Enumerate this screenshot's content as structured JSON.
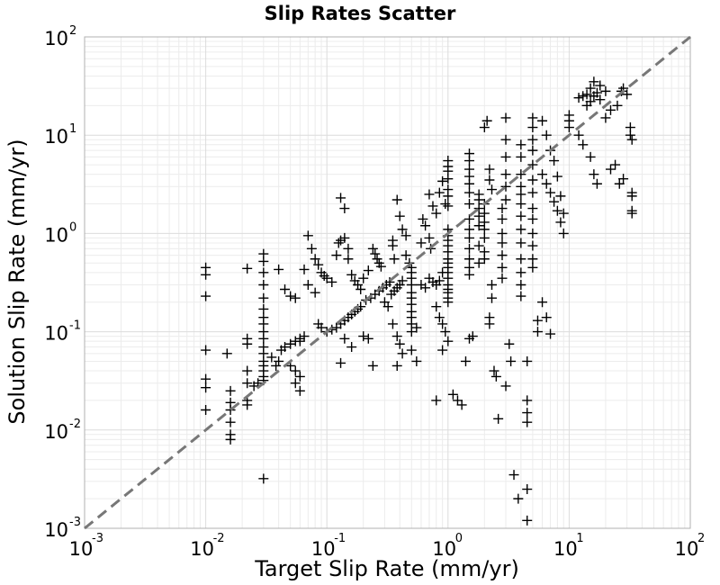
{
  "chart_data": {
    "type": "scatter",
    "title": "Slip Rates Scatter",
    "xlabel": "Target Slip Rate (mm/yr)",
    "ylabel": "Solution Slip Rate (mm/yr)",
    "xscale": "log",
    "yscale": "log",
    "xlim": [
      0.001,
      100
    ],
    "ylim": [
      0.001,
      100
    ],
    "grid": true,
    "marker": "+",
    "marker_color": "#000000",
    "reference_line": {
      "style": "dashed",
      "color": "#777777",
      "from": [
        0.001,
        0.001
      ],
      "to": [
        100,
        100
      ]
    },
    "x_ticks": [
      {
        "base": "10",
        "exp": "-3"
      },
      {
        "base": "10",
        "exp": "-2"
      },
      {
        "base": "10",
        "exp": "-1"
      },
      {
        "base": "10",
        "exp": "0"
      },
      {
        "base": "10",
        "exp": "1"
      },
      {
        "base": "10",
        "exp": "2"
      }
    ],
    "y_ticks": [
      {
        "base": "10",
        "exp": "-3"
      },
      {
        "base": "10",
        "exp": "-2"
      },
      {
        "base": "10",
        "exp": "-1"
      },
      {
        "base": "10",
        "exp": "0"
      },
      {
        "base": "10",
        "exp": "1"
      },
      {
        "base": "10",
        "exp": "2"
      }
    ],
    "points": [
      [
        0.01,
        0.45
      ],
      [
        0.01,
        0.38
      ],
      [
        0.01,
        0.23
      ],
      [
        0.01,
        0.065
      ],
      [
        0.01,
        0.033
      ],
      [
        0.01,
        0.027
      ],
      [
        0.01,
        0.016
      ],
      [
        0.015,
        0.06
      ],
      [
        0.016,
        0.025
      ],
      [
        0.016,
        0.019
      ],
      [
        0.016,
        0.016
      ],
      [
        0.016,
        0.012
      ],
      [
        0.016,
        0.009
      ],
      [
        0.016,
        0.008
      ],
      [
        0.022,
        0.44
      ],
      [
        0.022,
        0.085
      ],
      [
        0.022,
        0.075
      ],
      [
        0.022,
        0.04
      ],
      [
        0.022,
        0.03
      ],
      [
        0.022,
        0.02
      ],
      [
        0.022,
        0.018
      ],
      [
        0.03,
        0.62
      ],
      [
        0.03,
        0.52
      ],
      [
        0.03,
        0.4
      ],
      [
        0.03,
        0.3
      ],
      [
        0.03,
        0.22
      ],
      [
        0.03,
        0.17
      ],
      [
        0.03,
        0.14
      ],
      [
        0.03,
        0.12
      ],
      [
        0.03,
        0.1
      ],
      [
        0.03,
        0.085
      ],
      [
        0.03,
        0.07
      ],
      [
        0.03,
        0.06
      ],
      [
        0.03,
        0.05
      ],
      [
        0.03,
        0.045
      ],
      [
        0.03,
        0.04
      ],
      [
        0.03,
        0.035
      ],
      [
        0.03,
        0.032
      ],
      [
        0.03,
        0.0032
      ],
      [
        0.027,
        0.03
      ],
      [
        0.025,
        0.028
      ],
      [
        0.035,
        0.055
      ],
      [
        0.04,
        0.05
      ],
      [
        0.038,
        0.045
      ],
      [
        0.042,
        0.065
      ],
      [
        0.045,
        0.07
      ],
      [
        0.05,
        0.075
      ],
      [
        0.055,
        0.08
      ],
      [
        0.04,
        0.43
      ],
      [
        0.045,
        0.27
      ],
      [
        0.05,
        0.23
      ],
      [
        0.055,
        0.22
      ],
      [
        0.06,
        0.085
      ],
      [
        0.06,
        0.08
      ],
      [
        0.065,
        0.09
      ],
      [
        0.05,
        0.045
      ],
      [
        0.055,
        0.04
      ],
      [
        0.06,
        0.035
      ],
      [
        0.055,
        0.03
      ],
      [
        0.06,
        0.025
      ],
      [
        0.065,
        0.43
      ],
      [
        0.07,
        0.95
      ],
      [
        0.075,
        0.7
      ],
      [
        0.08,
        0.55
      ],
      [
        0.085,
        0.48
      ],
      [
        0.09,
        0.4
      ],
      [
        0.095,
        0.37
      ],
      [
        0.07,
        0.3
      ],
      [
        0.08,
        0.25
      ],
      [
        0.085,
        0.12
      ],
      [
        0.09,
        0.11
      ],
      [
        0.1,
        0.1
      ],
      [
        0.11,
        0.105
      ],
      [
        0.12,
        0.11
      ],
      [
        0.13,
        0.12
      ],
      [
        0.14,
        0.13
      ],
      [
        0.15,
        0.14
      ],
      [
        0.16,
        0.15
      ],
      [
        0.17,
        0.16
      ],
      [
        0.18,
        0.17
      ],
      [
        0.19,
        0.18
      ],
      [
        0.1,
        0.35
      ],
      [
        0.11,
        0.32
      ],
      [
        0.12,
        0.6
      ],
      [
        0.125,
        0.8
      ],
      [
        0.13,
        0.85
      ],
      [
        0.13,
        2.3
      ],
      [
        0.14,
        1.8
      ],
      [
        0.14,
        0.9
      ],
      [
        0.15,
        0.7
      ],
      [
        0.15,
        0.55
      ],
      [
        0.16,
        0.38
      ],
      [
        0.17,
        0.33
      ],
      [
        0.18,
        0.3
      ],
      [
        0.19,
        0.27
      ],
      [
        0.13,
        0.048
      ],
      [
        0.14,
        0.085
      ],
      [
        0.16,
        0.07
      ],
      [
        0.2,
        0.09
      ],
      [
        0.22,
        0.085
      ],
      [
        0.24,
        0.045
      ],
      [
        0.2,
        0.35
      ],
      [
        0.22,
        0.42
      ],
      [
        0.24,
        0.7
      ],
      [
        0.25,
        0.62
      ],
      [
        0.26,
        0.55
      ],
      [
        0.27,
        0.5
      ],
      [
        0.28,
        0.46
      ],
      [
        0.21,
        0.21
      ],
      [
        0.23,
        0.22
      ],
      [
        0.25,
        0.24
      ],
      [
        0.27,
        0.26
      ],
      [
        0.29,
        0.28
      ],
      [
        0.31,
        0.3
      ],
      [
        0.33,
        0.32
      ],
      [
        0.3,
        0.2
      ],
      [
        0.32,
        0.18
      ],
      [
        0.34,
        0.24
      ],
      [
        0.36,
        0.26
      ],
      [
        0.38,
        0.28
      ],
      [
        0.4,
        0.3
      ],
      [
        0.42,
        0.33
      ],
      [
        0.35,
        0.85
      ],
      [
        0.35,
        0.75
      ],
      [
        0.36,
        0.55
      ],
      [
        0.38,
        2.2
      ],
      [
        0.4,
        1.5
      ],
      [
        0.42,
        1.1
      ],
      [
        0.45,
        0.95
      ],
      [
        0.35,
        0.12
      ],
      [
        0.38,
        0.09
      ],
      [
        0.4,
        0.075
      ],
      [
        0.42,
        0.06
      ],
      [
        0.38,
        0.045
      ],
      [
        0.45,
        0.6
      ],
      [
        0.48,
        0.5
      ],
      [
        0.5,
        0.45
      ],
      [
        0.5,
        0.4
      ],
      [
        0.5,
        0.35
      ],
      [
        0.5,
        0.3
      ],
      [
        0.5,
        0.25
      ],
      [
        0.5,
        0.22
      ],
      [
        0.5,
        0.19
      ],
      [
        0.5,
        0.16
      ],
      [
        0.5,
        0.14
      ],
      [
        0.5,
        0.12
      ],
      [
        0.5,
        0.1
      ],
      [
        0.55,
        0.11
      ],
      [
        0.5,
        0.065
      ],
      [
        0.55,
        0.05
      ],
      [
        0.6,
        0.8
      ],
      [
        0.62,
        1.4
      ],
      [
        0.65,
        1.2
      ],
      [
        0.7,
        0.9
      ],
      [
        0.72,
        0.7
      ],
      [
        0.6,
        0.3
      ],
      [
        0.65,
        0.28
      ],
      [
        0.7,
        0.35
      ],
      [
        0.75,
        0.32
      ],
      [
        0.8,
        0.3
      ],
      [
        0.85,
        0.33
      ],
      [
        0.9,
        0.4
      ],
      [
        0.7,
        2.5
      ],
      [
        0.75,
        1.9
      ],
      [
        0.8,
        1.6
      ],
      [
        0.85,
        2.6
      ],
      [
        0.9,
        3.4
      ],
      [
        0.95,
        2.0
      ],
      [
        1.0,
        1.1
      ],
      [
        0.8,
        0.18
      ],
      [
        0.85,
        0.14
      ],
      [
        0.9,
        0.12
      ],
      [
        0.95,
        0.1
      ],
      [
        1.0,
        0.08
      ],
      [
        0.9,
        0.065
      ],
      [
        0.8,
        0.02
      ],
      [
        1.0,
        5.5
      ],
      [
        1.0,
        4.8
      ],
      [
        1.0,
        4.3
      ],
      [
        1.0,
        3.6
      ],
      [
        1.0,
        2.8
      ],
      [
        1.0,
        2.4
      ],
      [
        1.0,
        1.9
      ],
      [
        1.0,
        0.95
      ],
      [
        1.0,
        0.85
      ],
      [
        1.0,
        0.75
      ],
      [
        1.0,
        0.65
      ],
      [
        1.0,
        0.55
      ],
      [
        1.0,
        0.5
      ],
      [
        1.0,
        0.45
      ],
      [
        1.0,
        0.4
      ],
      [
        1.0,
        0.35
      ],
      [
        1.0,
        0.3
      ],
      [
        1.0,
        0.27
      ],
      [
        1.0,
        0.25
      ],
      [
        1.0,
        0.22
      ],
      [
        1.0,
        0.2
      ],
      [
        1.1,
        0.023
      ],
      [
        1.2,
        0.02
      ],
      [
        1.3,
        0.018
      ],
      [
        1.4,
        0.05
      ],
      [
        1.5,
        0.085
      ],
      [
        1.6,
        0.09
      ],
      [
        1.5,
        6.5
      ],
      [
        1.5,
        5.5
      ],
      [
        1.5,
        4.5
      ],
      [
        1.5,
        3.8
      ],
      [
        1.5,
        3.2
      ],
      [
        1.5,
        2.6
      ],
      [
        1.5,
        2.0
      ],
      [
        1.5,
        1.4
      ],
      [
        1.5,
        1.1
      ],
      [
        1.5,
        0.9
      ],
      [
        1.5,
        0.7
      ],
      [
        1.5,
        0.55
      ],
      [
        1.5,
        0.45
      ],
      [
        1.5,
        0.38
      ],
      [
        1.8,
        0.75
      ],
      [
        1.8,
        1.2
      ],
      [
        1.8,
        1.5
      ],
      [
        1.8,
        1.8
      ],
      [
        1.8,
        2.2
      ],
      [
        1.8,
        2.5
      ],
      [
        1.8,
        0.5
      ],
      [
        2.0,
        0.9
      ],
      [
        2.0,
        1.1
      ],
      [
        2.0,
        1.3
      ],
      [
        2.0,
        1.6
      ],
      [
        2.0,
        2.0
      ],
      [
        2.0,
        0.65
      ],
      [
        2.0,
        0.55
      ],
      [
        2.0,
        12
      ],
      [
        2.1,
        14
      ],
      [
        2.2,
        4.5
      ],
      [
        2.2,
        3.5
      ],
      [
        2.3,
        2.8
      ],
      [
        2.3,
        0.3
      ],
      [
        2.3,
        0.22
      ],
      [
        2.2,
        0.14
      ],
      [
        2.2,
        0.12
      ],
      [
        2.4,
        0.04
      ],
      [
        2.5,
        0.035
      ],
      [
        2.6,
        0.013
      ],
      [
        2.8,
        1.8
      ],
      [
        2.8,
        1.4
      ],
      [
        2.8,
        1.0
      ],
      [
        2.8,
        0.8
      ],
      [
        2.8,
        0.6
      ],
      [
        2.8,
        0.45
      ],
      [
        2.8,
        0.35
      ],
      [
        3.0,
        15
      ],
      [
        3.0,
        9
      ],
      [
        3.0,
        6
      ],
      [
        3.0,
        4
      ],
      [
        3.0,
        3
      ],
      [
        3.0,
        2.2
      ],
      [
        3.0,
        0.028
      ],
      [
        3.2,
        0.075
      ],
      [
        3.3,
        0.05
      ],
      [
        3.5,
        0.0035
      ],
      [
        3.8,
        0.002
      ],
      [
        4.0,
        8
      ],
      [
        4.0,
        6
      ],
      [
        4.0,
        4
      ],
      [
        4.0,
        3
      ],
      [
        4.0,
        2.5
      ],
      [
        4.0,
        2.0
      ],
      [
        4.0,
        1.5
      ],
      [
        4.0,
        1.1
      ],
      [
        4.0,
        0.8
      ],
      [
        4.0,
        0.55
      ],
      [
        4.0,
        0.4
      ],
      [
        4.0,
        0.3
      ],
      [
        4.0,
        0.23
      ],
      [
        4.5,
        0.05
      ],
      [
        4.5,
        0.02
      ],
      [
        4.5,
        0.015
      ],
      [
        4.5,
        0.012
      ],
      [
        4.5,
        0.0025
      ],
      [
        4.5,
        0.0012
      ],
      [
        5.0,
        15
      ],
      [
        5.0,
        12
      ],
      [
        5.0,
        9
      ],
      [
        5.0,
        7
      ],
      [
        5.0,
        5
      ],
      [
        5.0,
        3.5
      ],
      [
        5.0,
        2.6
      ],
      [
        5.0,
        1.8
      ],
      [
        5.0,
        1.4
      ],
      [
        5.0,
        1.0
      ],
      [
        5.0,
        0.75
      ],
      [
        5.0,
        0.55
      ],
      [
        5.0,
        0.45
      ],
      [
        5.5,
        0.13
      ],
      [
        5.5,
        0.1
      ],
      [
        6.0,
        0.2
      ],
      [
        6.5,
        0.14
      ],
      [
        7.0,
        0.095
      ],
      [
        6.0,
        14
      ],
      [
        6.5,
        10
      ],
      [
        7.0,
        7
      ],
      [
        7.5,
        5.5
      ],
      [
        8.0,
        3.8
      ],
      [
        8.5,
        2.4
      ],
      [
        9.0,
        1.6
      ],
      [
        6.0,
        4
      ],
      [
        6.5,
        3.2
      ],
      [
        7.0,
        2.6
      ],
      [
        7.5,
        2.1
      ],
      [
        8.0,
        1.7
      ],
      [
        8.5,
        1.3
      ],
      [
        9.0,
        1.0
      ],
      [
        10,
        16
      ],
      [
        10,
        14
      ],
      [
        10,
        12
      ],
      [
        12,
        10
      ],
      [
        13,
        8
      ],
      [
        15,
        6
      ],
      [
        16,
        4
      ],
      [
        17,
        3.2
      ],
      [
        14,
        20
      ],
      [
        15,
        22
      ],
      [
        16,
        25
      ],
      [
        17,
        27
      ],
      [
        18,
        23
      ],
      [
        20,
        28
      ],
      [
        22,
        18
      ],
      [
        12,
        24
      ],
      [
        13,
        25
      ],
      [
        14,
        26
      ],
      [
        15,
        30
      ],
      [
        16,
        35
      ],
      [
        18,
        32
      ],
      [
        20,
        15
      ],
      [
        22,
        4.5
      ],
      [
        24,
        5
      ],
      [
        25,
        20
      ],
      [
        27,
        28
      ],
      [
        28,
        30
      ],
      [
        30,
        26
      ],
      [
        32,
        12
      ],
      [
        32,
        10
      ],
      [
        33,
        9
      ],
      [
        33,
        2.6
      ],
      [
        33,
        2.4
      ],
      [
        33,
        1.7
      ],
      [
        33,
        1.6
      ],
      [
        26,
        3.2
      ],
      [
        28,
        3.6
      ]
    ]
  }
}
